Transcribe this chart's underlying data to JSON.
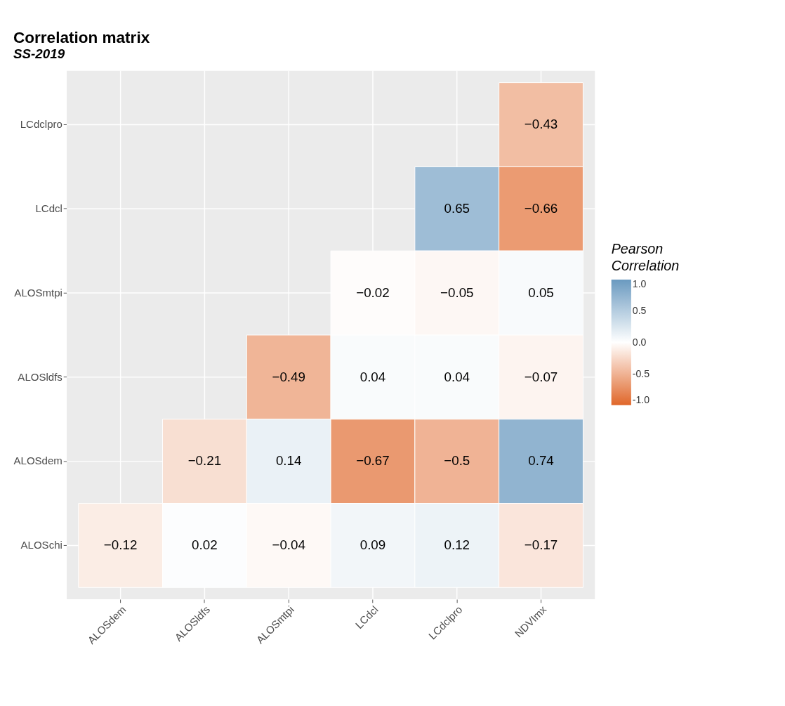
{
  "chart_data": {
    "type": "heatmap",
    "title": "Correlation matrix",
    "subtitle": "SS-2019",
    "legend_title": "Pearson Correlation",
    "categories": [
      "ALOSdem",
      "ALOSldfs",
      "ALOSmtpi",
      "LCdcl",
      "LCdclpro",
      "NDVImx"
    ],
    "y_categories": [
      "LCdclpro",
      "LCdcl",
      "ALOSmtpi",
      "ALOSldfs",
      "ALOSdem",
      "ALOSchi"
    ],
    "cells": [
      [
        null,
        null,
        null,
        null,
        null,
        -0.43
      ],
      [
        null,
        null,
        null,
        null,
        0.65,
        -0.66
      ],
      [
        null,
        null,
        null,
        -0.02,
        -0.05,
        0.05
      ],
      [
        null,
        null,
        -0.49,
        0.04,
        0.04,
        -0.07
      ],
      [
        null,
        -0.21,
        0.14,
        -0.67,
        -0.5,
        0.74
      ],
      [
        -0.12,
        0.02,
        -0.04,
        0.09,
        0.12,
        -0.17
      ]
    ],
    "clim": [
      -1,
      1
    ],
    "cticks": [
      {
        "value": -1,
        "label": "-1.0"
      },
      {
        "value": -0.5,
        "label": "-0.5"
      },
      {
        "value": 0,
        "label": "0.0"
      },
      {
        "value": 0.5,
        "label": "0.5"
      },
      {
        "value": 1,
        "label": "1.0"
      }
    ],
    "colors": [
      "#e0672a",
      "#ffffff",
      "#6a9ac0"
    ],
    "data_labels": true,
    "grid": true
  }
}
